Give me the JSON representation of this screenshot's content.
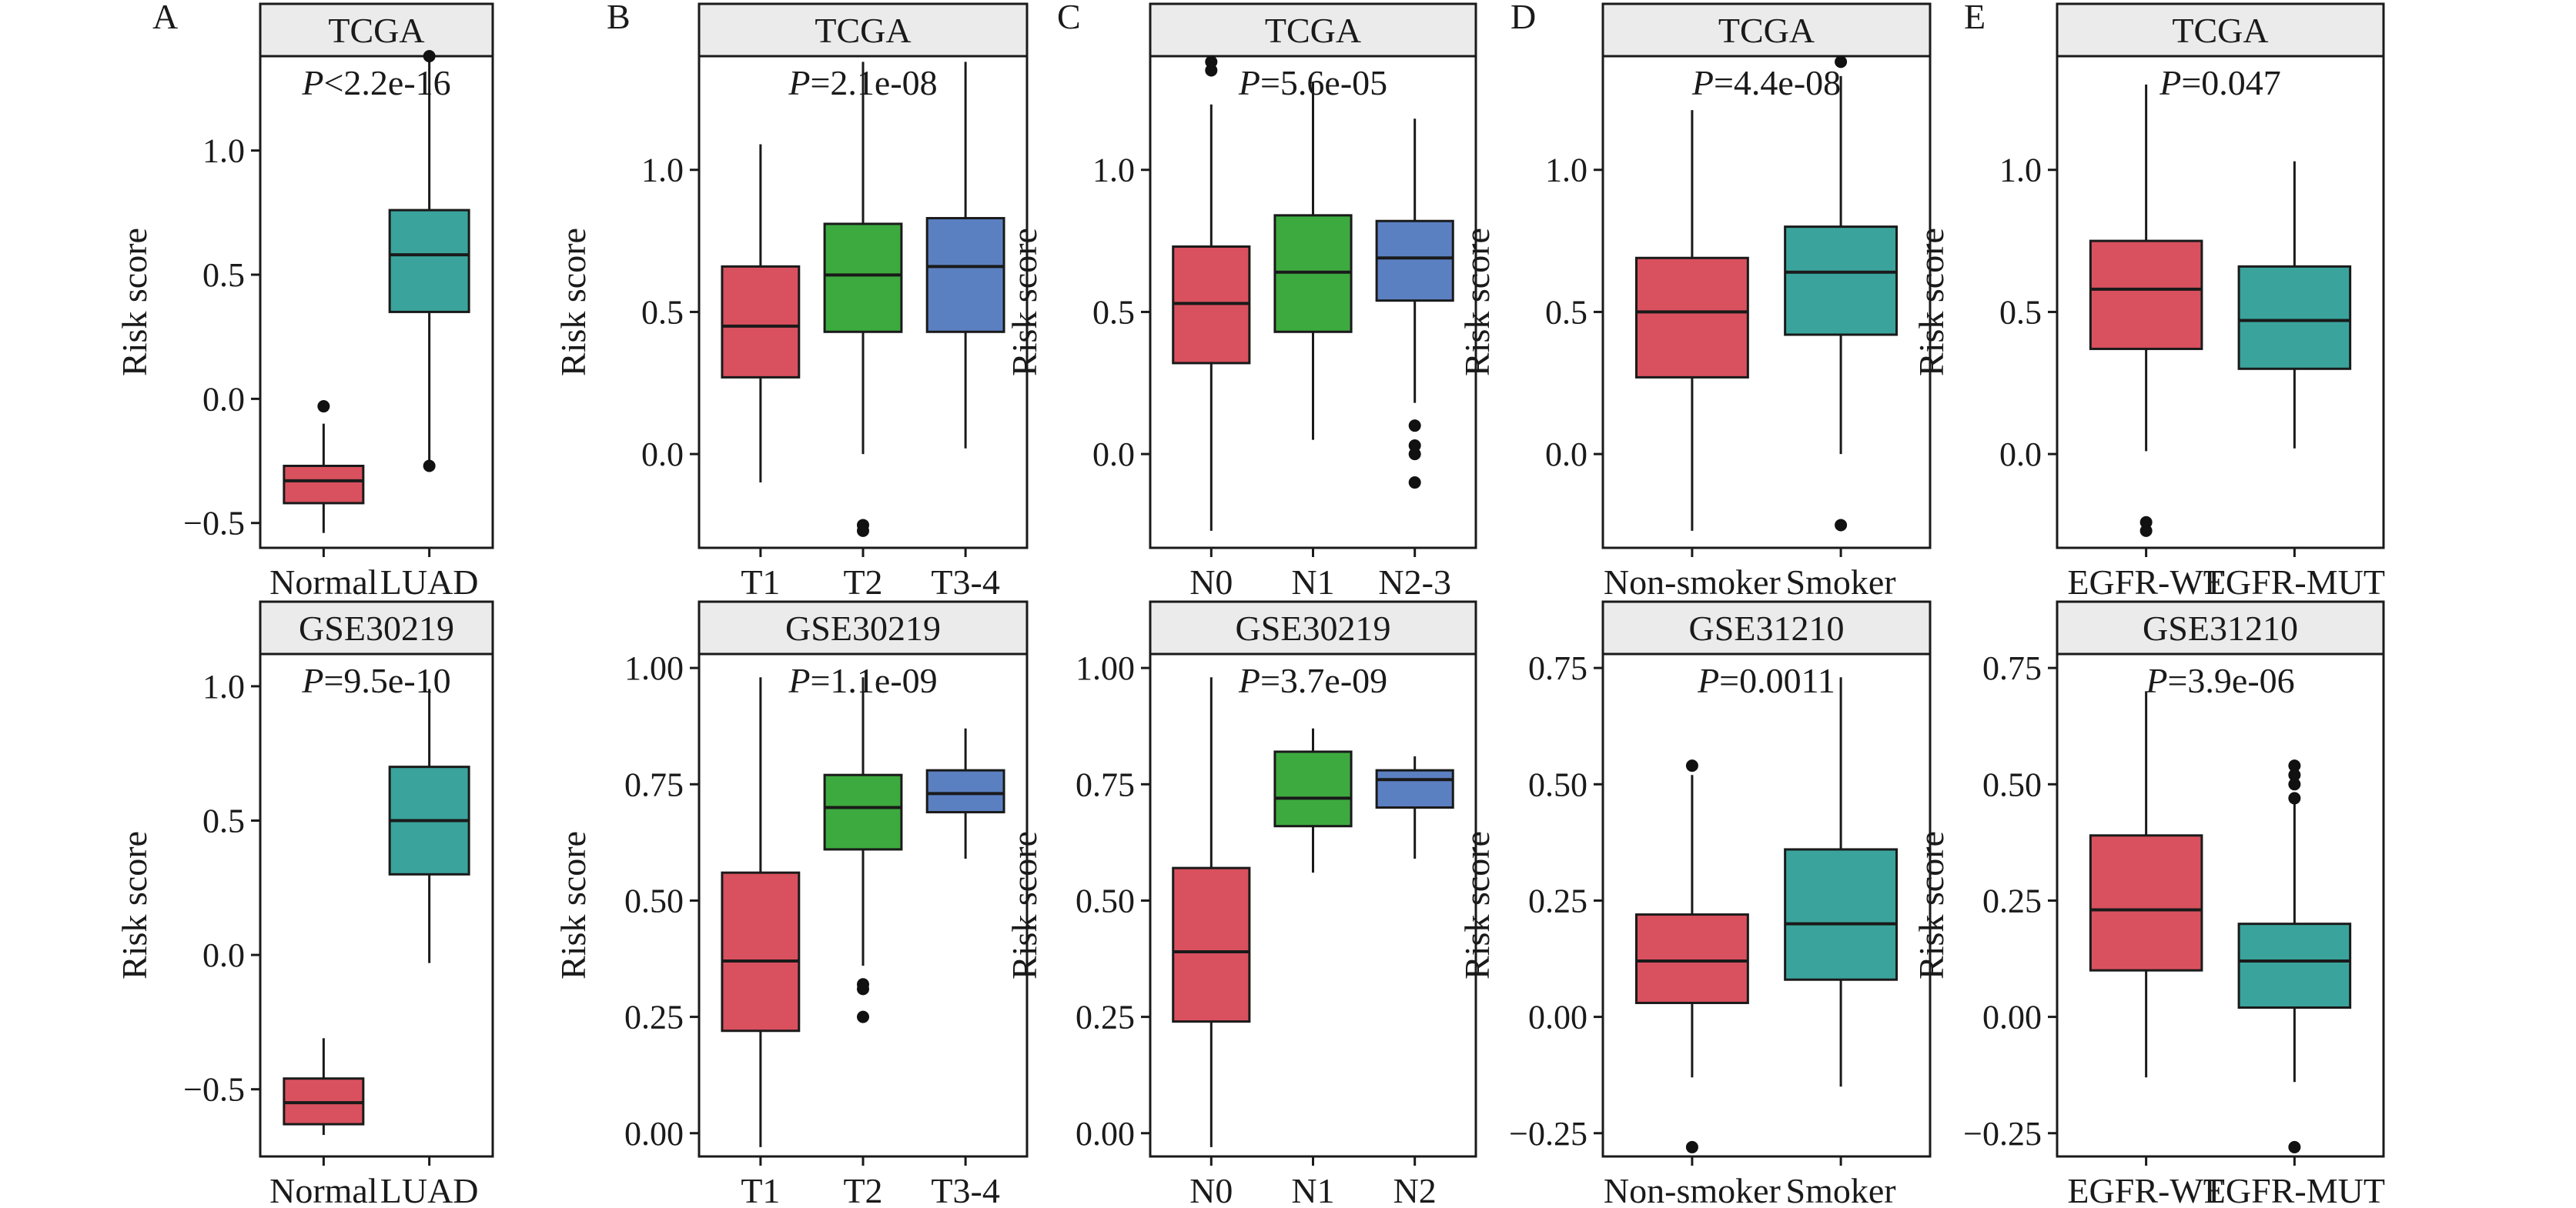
{
  "chart_data": [
    {
      "panel_letter": "A",
      "strip": "TCGA",
      "pvalue": "<2.2e-16",
      "type": "boxplot",
      "ylabel": "Risk score",
      "ylim": [
        -0.6,
        1.38
      ],
      "yticks": [
        -0.5,
        0.0,
        0.5,
        1.0
      ],
      "ytick_labels": [
        "−0.5",
        "0.0",
        "0.5",
        "1.0"
      ],
      "categories": [
        "Normal",
        "LUAD"
      ],
      "boxes": [
        {
          "category": "Normal",
          "color": "#D9515E",
          "whisker_low": -0.54,
          "q1": -0.42,
          "median": -0.33,
          "q3": -0.27,
          "whisker_high": -0.1,
          "outliers": [
            -0.03
          ]
        },
        {
          "category": "LUAD",
          "color": "#3AA49C",
          "whisker_low": -0.27,
          "q1": 0.35,
          "median": 0.58,
          "q3": 0.76,
          "whisker_high": 1.38,
          "outliers": [
            -0.27,
            1.38
          ]
        }
      ]
    },
    {
      "panel_letter": "B",
      "strip": "TCGA",
      "pvalue": "=2.1e-08",
      "type": "boxplot",
      "ylabel": "Risk score",
      "ylim": [
        -0.33,
        1.4
      ],
      "yticks": [
        0.0,
        0.5,
        1.0
      ],
      "ytick_labels": [
        "0.0",
        "0.5",
        "1.0"
      ],
      "categories": [
        "T1",
        "T2",
        "T3-4"
      ],
      "boxes": [
        {
          "category": "T1",
          "color": "#D9515E",
          "whisker_low": -0.1,
          "q1": 0.27,
          "median": 0.45,
          "q3": 0.66,
          "whisker_high": 1.09,
          "outliers": []
        },
        {
          "category": "T2",
          "color": "#3DAA3F",
          "whisker_low": 0.0,
          "q1": 0.43,
          "median": 0.63,
          "q3": 0.81,
          "whisker_high": 1.38,
          "outliers": [
            -0.25,
            -0.27
          ]
        },
        {
          "category": "T3-4",
          "color": "#5B80C2",
          "whisker_low": 0.02,
          "q1": 0.43,
          "median": 0.66,
          "q3": 0.83,
          "whisker_high": 1.38,
          "outliers": []
        }
      ]
    },
    {
      "panel_letter": "C",
      "strip": "TCGA",
      "pvalue": "=5.6e-05",
      "type": "boxplot",
      "ylabel": "Risk score",
      "ylim": [
        -0.33,
        1.4
      ],
      "yticks": [
        0.0,
        0.5,
        1.0
      ],
      "ytick_labels": [
        "0.0",
        "0.5",
        "1.0"
      ],
      "categories": [
        "N0",
        "N1",
        "N2-3"
      ],
      "boxes": [
        {
          "category": "N0",
          "color": "#D9515E",
          "whisker_low": -0.27,
          "q1": 0.32,
          "median": 0.53,
          "q3": 0.73,
          "whisker_high": 1.23,
          "outliers": [
            1.35,
            1.38
          ]
        },
        {
          "category": "N1",
          "color": "#3DAA3F",
          "whisker_low": 0.05,
          "q1": 0.43,
          "median": 0.64,
          "q3": 0.84,
          "whisker_high": 1.31,
          "outliers": []
        },
        {
          "category": "N2-3",
          "color": "#5B80C2",
          "whisker_low": 0.18,
          "q1": 0.54,
          "median": 0.69,
          "q3": 0.82,
          "whisker_high": 1.18,
          "outliers": [
            0.1,
            0.03,
            0.0,
            -0.1
          ]
        }
      ]
    },
    {
      "panel_letter": "D",
      "strip": "TCGA",
      "pvalue": "=4.4e-08",
      "type": "boxplot",
      "ylabel": "Risk score",
      "ylim": [
        -0.33,
        1.4
      ],
      "yticks": [
        0.0,
        0.5,
        1.0
      ],
      "ytick_labels": [
        "0.0",
        "0.5",
        "1.0"
      ],
      "categories": [
        "Non-smoker",
        "Smoker"
      ],
      "boxes": [
        {
          "category": "Non-smoker",
          "color": "#D9515E",
          "whisker_low": -0.27,
          "q1": 0.27,
          "median": 0.5,
          "q3": 0.69,
          "whisker_high": 1.21,
          "outliers": []
        },
        {
          "category": "Smoker",
          "color": "#3AA49C",
          "whisker_low": 0.0,
          "q1": 0.42,
          "median": 0.64,
          "q3": 0.8,
          "whisker_high": 1.33,
          "outliers": [
            1.38,
            -0.25
          ]
        }
      ]
    },
    {
      "panel_letter": "E",
      "strip": "TCGA",
      "pvalue": "=0.047",
      "type": "boxplot",
      "ylabel": "Risk score",
      "ylim": [
        -0.33,
        1.4
      ],
      "yticks": [
        0.0,
        0.5,
        1.0
      ],
      "ytick_labels": [
        "0.0",
        "0.5",
        "1.0"
      ],
      "categories": [
        "EGFR-WT",
        "EGFR-MUT"
      ],
      "boxes": [
        {
          "category": "EGFR-WT",
          "color": "#D9515E",
          "whisker_low": 0.01,
          "q1": 0.37,
          "median": 0.58,
          "q3": 0.75,
          "whisker_high": 1.3,
          "outliers": [
            -0.24,
            -0.27
          ]
        },
        {
          "category": "EGFR-MUT",
          "color": "#3AA49C",
          "whisker_low": 0.02,
          "q1": 0.3,
          "median": 0.47,
          "q3": 0.66,
          "whisker_high": 1.03,
          "outliers": []
        }
      ]
    },
    {
      "panel_letter": "",
      "strip": "GSE30219",
      "pvalue": "=9.5e-10",
      "type": "boxplot",
      "ylabel": "Risk score",
      "ylim": [
        -0.75,
        1.12
      ],
      "yticks": [
        -0.5,
        0.0,
        0.5,
        1.0
      ],
      "ytick_labels": [
        "−0.5",
        "0.0",
        "0.5",
        "1.0"
      ],
      "categories": [
        "Normal",
        "LUAD"
      ],
      "boxes": [
        {
          "category": "Normal",
          "color": "#D9515E",
          "whisker_low": -0.67,
          "q1": -0.63,
          "median": -0.55,
          "q3": -0.46,
          "whisker_high": -0.31,
          "outliers": []
        },
        {
          "category": "LUAD",
          "color": "#3AA49C",
          "whisker_low": -0.03,
          "q1": 0.3,
          "median": 0.5,
          "q3": 0.7,
          "whisker_high": 0.99,
          "outliers": []
        }
      ]
    },
    {
      "panel_letter": "",
      "strip": "GSE30219",
      "pvalue": "=1.1e-09",
      "type": "boxplot",
      "ylabel": "Risk score",
      "ylim": [
        -0.05,
        1.03
      ],
      "yticks": [
        0.0,
        0.25,
        0.5,
        0.75,
        1.0
      ],
      "ytick_labels": [
        "0.00",
        "0.25",
        "0.50",
        "0.75",
        "1.00"
      ],
      "categories": [
        "T1",
        "T2",
        "T3-4"
      ],
      "boxes": [
        {
          "category": "T1",
          "color": "#D9515E",
          "whisker_low": -0.03,
          "q1": 0.22,
          "median": 0.37,
          "q3": 0.56,
          "whisker_high": 0.98,
          "outliers": []
        },
        {
          "category": "T2",
          "color": "#3DAA3F",
          "whisker_low": 0.36,
          "q1": 0.61,
          "median": 0.7,
          "q3": 0.77,
          "whisker_high": 0.98,
          "outliers": [
            0.32,
            0.31,
            0.25
          ]
        },
        {
          "category": "T3-4",
          "color": "#5B80C2",
          "whisker_low": 0.59,
          "q1": 0.69,
          "median": 0.73,
          "q3": 0.78,
          "whisker_high": 0.87,
          "outliers": []
        }
      ]
    },
    {
      "panel_letter": "",
      "strip": "GSE30219",
      "pvalue": "=3.7e-09",
      "type": "boxplot",
      "ylabel": "Risk score",
      "ylim": [
        -0.05,
        1.03
      ],
      "yticks": [
        0.0,
        0.25,
        0.5,
        0.75,
        1.0
      ],
      "ytick_labels": [
        "0.00",
        "0.25",
        "0.50",
        "0.75",
        "1.00"
      ],
      "categories": [
        "N0",
        "N1",
        "N2"
      ],
      "boxes": [
        {
          "category": "N0",
          "color": "#D9515E",
          "whisker_low": -0.03,
          "q1": 0.24,
          "median": 0.39,
          "q3": 0.57,
          "whisker_high": 0.98,
          "outliers": []
        },
        {
          "category": "N1",
          "color": "#3DAA3F",
          "whisker_low": 0.56,
          "q1": 0.66,
          "median": 0.72,
          "q3": 0.82,
          "whisker_high": 0.87,
          "outliers": []
        },
        {
          "category": "N2",
          "color": "#5B80C2",
          "whisker_low": 0.59,
          "q1": 0.7,
          "median": 0.76,
          "q3": 0.78,
          "whisker_high": 0.81,
          "outliers": []
        }
      ]
    },
    {
      "panel_letter": "",
      "strip": "GSE31210",
      "pvalue": "=0.0011",
      "type": "boxplot",
      "ylabel": "Risk score",
      "ylim": [
        -0.3,
        0.78
      ],
      "yticks": [
        -0.25,
        0.0,
        0.25,
        0.5,
        0.75
      ],
      "ytick_labels": [
        "−0.25",
        "0.00",
        "0.25",
        "0.50",
        "0.75"
      ],
      "categories": [
        "Non-smoker",
        "Smoker"
      ],
      "boxes": [
        {
          "category": "Non-smoker",
          "color": "#D9515E",
          "whisker_low": -0.13,
          "q1": 0.03,
          "median": 0.12,
          "q3": 0.22,
          "whisker_high": 0.52,
          "outliers": [
            0.54,
            -0.28
          ]
        },
        {
          "category": "Smoker",
          "color": "#3AA49C",
          "whisker_low": -0.15,
          "q1": 0.08,
          "median": 0.2,
          "q3": 0.36,
          "whisker_high": 0.73,
          "outliers": []
        }
      ]
    },
    {
      "panel_letter": "",
      "strip": "GSE31210",
      "pvalue": "=3.9e-06",
      "type": "boxplot",
      "ylabel": "Risk score",
      "ylim": [
        -0.3,
        0.78
      ],
      "yticks": [
        -0.25,
        0.0,
        0.25,
        0.5,
        0.75
      ],
      "ytick_labels": [
        "−0.25",
        "0.00",
        "0.25",
        "0.50",
        "0.75"
      ],
      "categories": [
        "EGFR-WT",
        "EGFR-MUT"
      ],
      "boxes": [
        {
          "category": "EGFR-WT",
          "color": "#D9515E",
          "whisker_low": -0.13,
          "q1": 0.1,
          "median": 0.23,
          "q3": 0.39,
          "whisker_high": 0.7,
          "outliers": []
        },
        {
          "category": "EGFR-MUT",
          "color": "#3AA49C",
          "whisker_low": -0.14,
          "q1": 0.02,
          "median": 0.12,
          "q3": 0.2,
          "whisker_high": 0.46,
          "outliers": [
            0.54,
            0.52,
            0.5,
            0.47,
            -0.28
          ]
        }
      ]
    }
  ]
}
